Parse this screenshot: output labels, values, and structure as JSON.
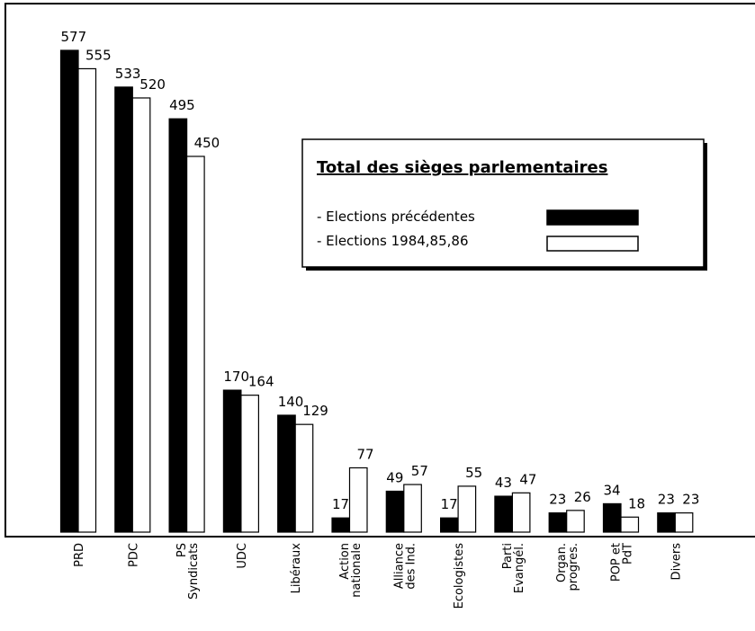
{
  "chart_data": {
    "type": "bar",
    "title": "Total des sièges parlementaires",
    "categories": [
      [
        "PRD"
      ],
      [
        "PDC"
      ],
      [
        "PS",
        "Syndicats"
      ],
      [
        "UDC"
      ],
      [
        "Libéraux"
      ],
      [
        "Action",
        "nationale"
      ],
      [
        "Alliance",
        "des Ind."
      ],
      [
        "Ecologistes"
      ],
      [
        "Parti",
        "Evangél."
      ],
      [
        "Organ.",
        "progres."
      ],
      [
        "POP et",
        "PdT"
      ],
      [
        "Divers"
      ]
    ],
    "series": [
      {
        "name": "- Elections précédentes",
        "color": "#000000",
        "values": [
          577,
          533,
          495,
          170,
          140,
          17,
          49,
          17,
          43,
          23,
          34,
          23
        ]
      },
      {
        "name": "- Elections 1984,85,86",
        "color": "#ffffff",
        "values": [
          555,
          520,
          450,
          164,
          129,
          77,
          57,
          55,
          47,
          26,
          18,
          23
        ]
      }
    ],
    "ylim": [
      0,
      633
    ]
  }
}
